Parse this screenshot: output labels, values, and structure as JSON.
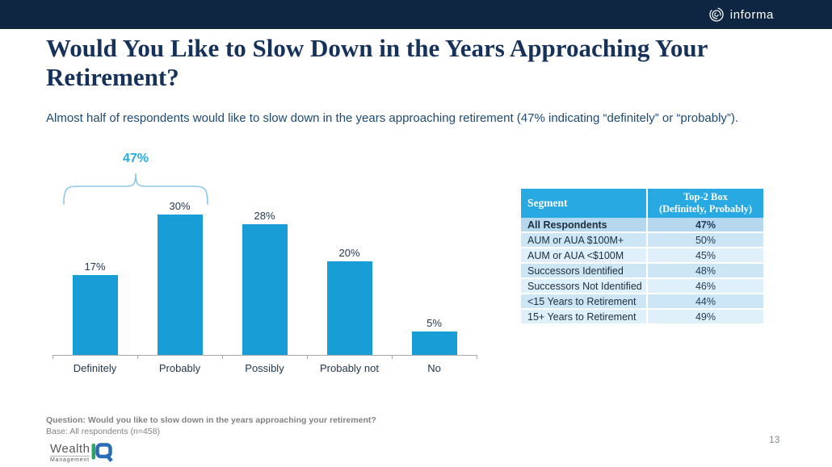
{
  "top_bar": {
    "brand": "informa"
  },
  "title_lines": [
    "Would You Like to Slow Down in the Years Approaching Your",
    "Retirement?"
  ],
  "title": "Would You Like to Slow Down in the Years Approaching Your Retirement?",
  "subtitle": "Almost half of respondents would like to slow down in the years approaching retirement (47% indicating “definitely” or “probably”).",
  "chart_data": [
    {
      "type": "bar",
      "categories": [
        "Definitely",
        "Probably",
        "Possibly",
        "Probably not",
        "No"
      ],
      "values": [
        17,
        30,
        28,
        20,
        5
      ],
      "value_labels": [
        "17%",
        "30%",
        "28%",
        "20%",
        "5%"
      ],
      "unit": "percent",
      "bar_color": "#189dd6",
      "ylim": [
        0,
        32
      ],
      "grid": "off",
      "annotation": {
        "label": "47%",
        "spans_categories": [
          "Definitely",
          "Probably"
        ],
        "color": "#29abe2"
      }
    },
    {
      "type": "table",
      "columns": [
        "Segment",
        "Top-2 Box (Definitely, Probably)"
      ],
      "column2_lines": [
        "Top-2 Box",
        "(Definitely, Probably)"
      ],
      "rows": [
        [
          "All Respondents",
          "47%"
        ],
        [
          "AUM or AUA $100M+",
          "50%"
        ],
        [
          "AUM or AUA <$100M",
          "45%"
        ],
        [
          "Successors Identified",
          "48%"
        ],
        [
          "Successors Not Identified",
          "46%"
        ],
        [
          "<15 Years to Retirement",
          "44%"
        ],
        [
          "15+ Years to Retirement",
          "49%"
        ]
      ],
      "highlight_row": "All Respondents",
      "header_color": "#29a9e1"
    }
  ],
  "footer": {
    "question": "Question: Would you like to slow down in the years approaching your retirement?",
    "base": "Base: All respondents (n=458)",
    "page_number": "13",
    "logo": {
      "line1": "Wealth",
      "line2": "Management",
      "mark": "iQ"
    }
  },
  "colors": {
    "top_bar": "#0e2642",
    "title": "#16325b",
    "subtitle": "#1e4a73",
    "bar": "#189dd6",
    "accent": "#29abe2",
    "bracket": "#8cc6ea",
    "row_highlight": "#b5d8ee",
    "row_odd": "#cde6f5",
    "row_even": "#dff0fa"
  }
}
